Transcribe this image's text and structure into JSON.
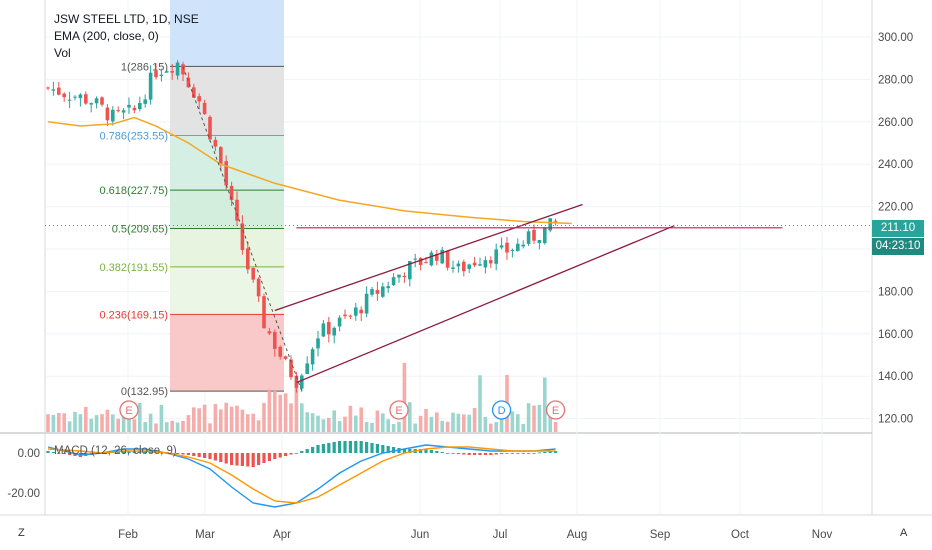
{
  "legend": {
    "symbol": "JSW STEEL LTD, 1D, NSE",
    "ema": "EMA (200, close, 0)",
    "vol": "Vol",
    "macd": "MACD (12, 26, close, 9)"
  },
  "price_tags": {
    "last": "211.10",
    "countdown": "04:23:10"
  },
  "corners": {
    "left": "Z",
    "right": "A"
  },
  "colors": {
    "up": "#26a69a",
    "down": "#ef5350",
    "ema": "#f5a623",
    "channel": "#8e1b3e",
    "macd": "#2196f3",
    "signal": "#ff9800",
    "price_tag": "#26a69a"
  },
  "chart_data": {
    "type": "candlestick",
    "title": "JSW STEEL LTD, 1D, NSE",
    "x_ticks": [
      "Feb",
      "Mar",
      "Apr",
      "Jun",
      "Jul",
      "Aug",
      "Sep",
      "Oct",
      "Nov"
    ],
    "y_ticks": [
      "300.00",
      "280.00",
      "260.00",
      "240.00",
      "220.00",
      "200.00",
      "180.00",
      "160.00",
      "140.00",
      "120.00"
    ],
    "ylim": [
      115,
      310
    ],
    "last_price": 211.1,
    "fibonacci": [
      {
        "label": "1(286.15)",
        "value": 286.15
      },
      {
        "label": "0.786(253.55)",
        "value": 253.55
      },
      {
        "label": "0.618(227.75)",
        "value": 227.75
      },
      {
        "label": "0.5(209.65)",
        "value": 209.65
      },
      {
        "label": "0.382(191.55)",
        "value": 191.55
      },
      {
        "label": "0.236(169.15)",
        "value": 169.15
      },
      {
        "label": "0(132.95)",
        "value": 132.95
      }
    ],
    "ema_200": [
      [
        0,
        260
      ],
      [
        6,
        258
      ],
      [
        12,
        259
      ],
      [
        16,
        262
      ],
      [
        20,
        258
      ],
      [
        26,
        250
      ],
      [
        32,
        240
      ],
      [
        42,
        231
      ],
      [
        54,
        223
      ],
      [
        66,
        218
      ],
      [
        78,
        215
      ],
      [
        88,
        213
      ],
      [
        97,
        212
      ]
    ],
    "channel_upper": [
      [
        42,
        171
      ],
      [
        99,
        221
      ]
    ],
    "channel_lower": [
      [
        46,
        137
      ],
      [
        116,
        211
      ]
    ],
    "resistance": [
      [
        46,
        210
      ],
      [
        136,
        210
      ]
    ],
    "fib_diagonal": [
      [
        25,
        286
      ],
      [
        47,
        133
      ]
    ],
    "events": [
      {
        "label": "E",
        "x": 15
      },
      {
        "label": "E",
        "x": 65
      },
      {
        "label": "D",
        "x": 84
      },
      {
        "label": "E",
        "x": 94
      }
    ],
    "macd": {
      "y_ticks": [
        "0.00",
        "-20.00"
      ],
      "ylim": [
        -30,
        6
      ],
      "macd_line": [
        [
          0,
          3
        ],
        [
          6,
          -1
        ],
        [
          10,
          0
        ],
        [
          14,
          2
        ],
        [
          18,
          2
        ],
        [
          22,
          0
        ],
        [
          26,
          -3
        ],
        [
          30,
          -8
        ],
        [
          34,
          -17
        ],
        [
          38,
          -25
        ],
        [
          42,
          -27
        ],
        [
          46,
          -25
        ],
        [
          50,
          -18
        ],
        [
          54,
          -10
        ],
        [
          58,
          -4
        ],
        [
          62,
          0
        ],
        [
          66,
          2
        ],
        [
          70,
          4
        ],
        [
          74,
          3
        ],
        [
          78,
          2
        ],
        [
          82,
          1
        ],
        [
          86,
          1
        ],
        [
          90,
          1
        ],
        [
          94,
          2
        ]
      ],
      "signal_line": [
        [
          0,
          2
        ],
        [
          6,
          1
        ],
        [
          10,
          0
        ],
        [
          14,
          1
        ],
        [
          18,
          1
        ],
        [
          22,
          0
        ],
        [
          26,
          -2
        ],
        [
          30,
          -5
        ],
        [
          34,
          -11
        ],
        [
          38,
          -18
        ],
        [
          42,
          -24
        ],
        [
          46,
          -25
        ],
        [
          50,
          -22
        ],
        [
          54,
          -16
        ],
        [
          58,
          -10
        ],
        [
          62,
          -4
        ],
        [
          66,
          0
        ],
        [
          70,
          2
        ],
        [
          74,
          3
        ],
        [
          78,
          3
        ],
        [
          82,
          2
        ],
        [
          86,
          1
        ],
        [
          90,
          1
        ],
        [
          94,
          1
        ]
      ]
    }
  }
}
